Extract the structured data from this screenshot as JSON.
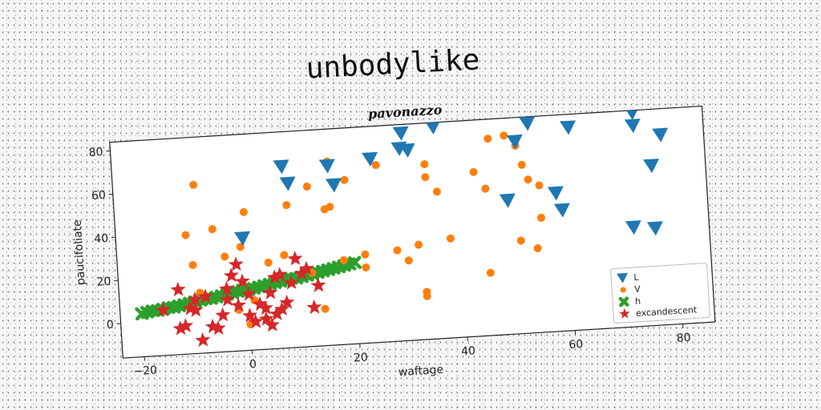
{
  "suptitle": "unbodylike",
  "chart_data": {
    "type": "scatter",
    "title": "pavonazzo",
    "xlabel": "waftage",
    "ylabel": "paucifoliate",
    "xlim": [
      -24,
      86
    ],
    "ylim": [
      -16,
      84
    ],
    "xticks": [
      -20,
      0,
      20,
      40,
      60,
      80
    ],
    "yticks": [
      0,
      20,
      40,
      60,
      80
    ],
    "grid": false,
    "legend_position": "lower right",
    "series": [
      {
        "name": "L",
        "marker": "triangle-down",
        "color": "#1f77b4",
        "points": [
          [
            -0.5,
            36
          ],
          [
            7.5,
            68
          ],
          [
            8.5,
            60
          ],
          [
            16,
            67
          ],
          [
            17,
            58
          ],
          [
            24,
            69
          ],
          [
            30,
            80
          ],
          [
            29.5,
            73
          ],
          [
            31,
            72
          ],
          [
            36,
            82
          ],
          [
            51,
            73
          ],
          [
            52,
            90
          ],
          [
            53,
            84
          ],
          [
            53.5,
            81
          ],
          [
            57,
            91
          ],
          [
            49,
            46
          ],
          [
            58,
            48
          ],
          [
            59,
            40
          ],
          [
            61,
            78
          ],
          [
            73,
            83
          ],
          [
            73,
            77
          ],
          [
            78,
            72
          ],
          [
            76,
            58
          ],
          [
            72,
            30
          ],
          [
            76,
            29
          ]
        ]
      },
      {
        "name": "V",
        "marker": "circle",
        "color": "#ff7f0e",
        "points": [
          [
            -9,
            62
          ],
          [
            -11,
            39
          ],
          [
            -6,
            41
          ],
          [
            0,
            48
          ],
          [
            -1,
            32
          ],
          [
            -4,
            28
          ],
          [
            -10,
            25
          ],
          [
            8,
            50
          ],
          [
            12,
            58
          ],
          [
            15,
            47
          ],
          [
            16,
            48
          ],
          [
            16,
            69
          ],
          [
            19,
            60
          ],
          [
            25,
            66
          ],
          [
            34,
            65
          ],
          [
            34,
            59
          ],
          [
            36,
            52
          ],
          [
            28,
            26
          ],
          [
            30,
            21
          ],
          [
            32,
            28
          ],
          [
            38,
            30
          ],
          [
            33,
            6
          ],
          [
            33,
            4
          ],
          [
            43,
            60
          ],
          [
            45,
            52
          ],
          [
            46,
            75
          ],
          [
            49,
            76
          ],
          [
            51,
            71
          ],
          [
            52,
            62
          ],
          [
            53,
            55
          ],
          [
            55,
            52
          ],
          [
            55,
            37
          ],
          [
            54,
            23
          ],
          [
            51,
            27
          ],
          [
            45,
            13
          ],
          [
            14,
            1
          ],
          [
            12,
            18
          ],
          [
            22,
            25
          ],
          [
            22,
            19
          ],
          [
            18,
            23
          ],
          [
            4,
            24
          ],
          [
            7,
            27
          ],
          [
            1,
            7
          ],
          [
            -2,
            3
          ],
          [
            -9,
            12
          ],
          [
            0,
            -4
          ],
          [
            3,
            -2
          ]
        ]
      },
      {
        "name": "h",
        "marker": "x",
        "color": "#2ca02c",
        "points": [
          [
            -20,
            4
          ],
          [
            -19,
            4.5
          ],
          [
            -18,
            5
          ],
          [
            -17,
            5
          ],
          [
            -16,
            5.5
          ],
          [
            -15,
            6
          ],
          [
            -14,
            6
          ],
          [
            -13,
            6.5
          ],
          [
            -12,
            7
          ],
          [
            -11,
            7.5
          ],
          [
            -10,
            8
          ],
          [
            -9,
            8.5
          ],
          [
            -8,
            9
          ],
          [
            -7,
            9
          ],
          [
            -6,
            9.5
          ],
          [
            -5,
            10
          ],
          [
            -4,
            10.5
          ],
          [
            -3,
            11
          ],
          [
            -2,
            11.5
          ],
          [
            -1,
            12
          ],
          [
            0,
            12
          ],
          [
            1,
            12.5
          ],
          [
            2,
            13
          ],
          [
            3,
            13.5
          ],
          [
            4,
            14
          ],
          [
            5,
            14.5
          ],
          [
            6,
            15
          ],
          [
            7,
            15.5
          ],
          [
            8,
            16
          ],
          [
            9,
            16
          ],
          [
            10,
            16.5
          ],
          [
            11,
            17
          ],
          [
            12,
            17.5
          ],
          [
            13,
            18
          ],
          [
            14,
            18.5
          ],
          [
            15,
            19
          ],
          [
            16,
            19.5
          ],
          [
            17,
            20
          ],
          [
            18,
            20.5
          ],
          [
            19,
            21
          ],
          [
            20,
            21.5
          ]
        ]
      },
      {
        "name": "excandescent",
        "marker": "star",
        "color": "#d62728",
        "points": [
          [
            -13,
            14
          ],
          [
            -16,
            5
          ],
          [
            -13,
            -4
          ],
          [
            -12,
            -3
          ],
          [
            -11,
            5
          ],
          [
            -10,
            4
          ],
          [
            -10,
            9
          ],
          [
            -8,
            10
          ],
          [
            -9,
            -10
          ],
          [
            -7,
            -4
          ],
          [
            -6,
            -5
          ],
          [
            -5,
            1
          ],
          [
            -4,
            13
          ],
          [
            -3,
            19
          ],
          [
            -2,
            24
          ],
          [
            -4,
            8
          ],
          [
            -1,
            16
          ],
          [
            0,
            10
          ],
          [
            0,
            0
          ],
          [
            1,
            -3
          ],
          [
            2,
            5
          ],
          [
            3,
            3
          ],
          [
            3,
            -2
          ],
          [
            4,
            -5
          ],
          [
            4,
            10
          ],
          [
            5,
            0
          ],
          [
            5,
            17
          ],
          [
            6,
            2
          ],
          [
            6,
            18
          ],
          [
            7,
            5
          ],
          [
            8,
            14
          ],
          [
            9,
            25
          ],
          [
            10,
            18
          ],
          [
            11,
            20
          ],
          [
            12,
            2
          ],
          [
            13,
            12
          ],
          [
            -2,
            5
          ]
        ]
      }
    ]
  }
}
